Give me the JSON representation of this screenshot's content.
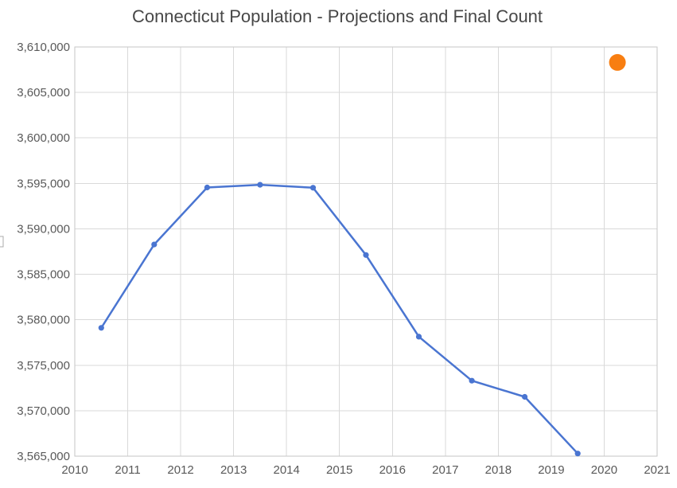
{
  "page": {
    "background": "#ffffff"
  },
  "chart_data": {
    "type": "line",
    "title": "Connecticut Population - Projections and Final Count",
    "xlabel": "",
    "ylabel": "",
    "xlim": [
      2010,
      2021
    ],
    "ylim": [
      3565000,
      3610000
    ],
    "x_ticks": [
      2010,
      2011,
      2012,
      2013,
      2014,
      2015,
      2016,
      2017,
      2018,
      2019,
      2020,
      2021
    ],
    "y_ticks": [
      3565000,
      3570000,
      3575000,
      3580000,
      3585000,
      3590000,
      3595000,
      3600000,
      3605000,
      3610000
    ],
    "y_tick_labels": [
      "3,565,000",
      "3,570,000",
      "3,575,000",
      "3,580,000",
      "3,585,000",
      "3,590,000",
      "3,595,000",
      "3,600,000",
      "3,605,000",
      "3,610,000"
    ],
    "grid": true,
    "legend": "none",
    "series": [
      {
        "name": "Projections",
        "type": "line",
        "color": "#4a75d1",
        "line_width": 2.5,
        "marker_radius": 3.6,
        "points": [
          {
            "x": 2010.5,
            "y": 3579114
          },
          {
            "x": 2011.5,
            "y": 3588283
          },
          {
            "x": 2012.5,
            "y": 3594547
          },
          {
            "x": 2013.5,
            "y": 3594841
          },
          {
            "x": 2014.5,
            "y": 3594524
          },
          {
            "x": 2015.5,
            "y": 3587122
          },
          {
            "x": 2016.5,
            "y": 3578141
          },
          {
            "x": 2017.5,
            "y": 3573297
          },
          {
            "x": 2018.5,
            "y": 3571520
          },
          {
            "x": 2019.5,
            "y": 3565287
          }
        ]
      },
      {
        "name": "Final Count",
        "type": "scatter",
        "color": "#f87e11",
        "line_width": 0,
        "marker_radius": 10.5,
        "points": [
          {
            "x": 2020.25,
            "y": 3608298
          }
        ]
      }
    ]
  }
}
